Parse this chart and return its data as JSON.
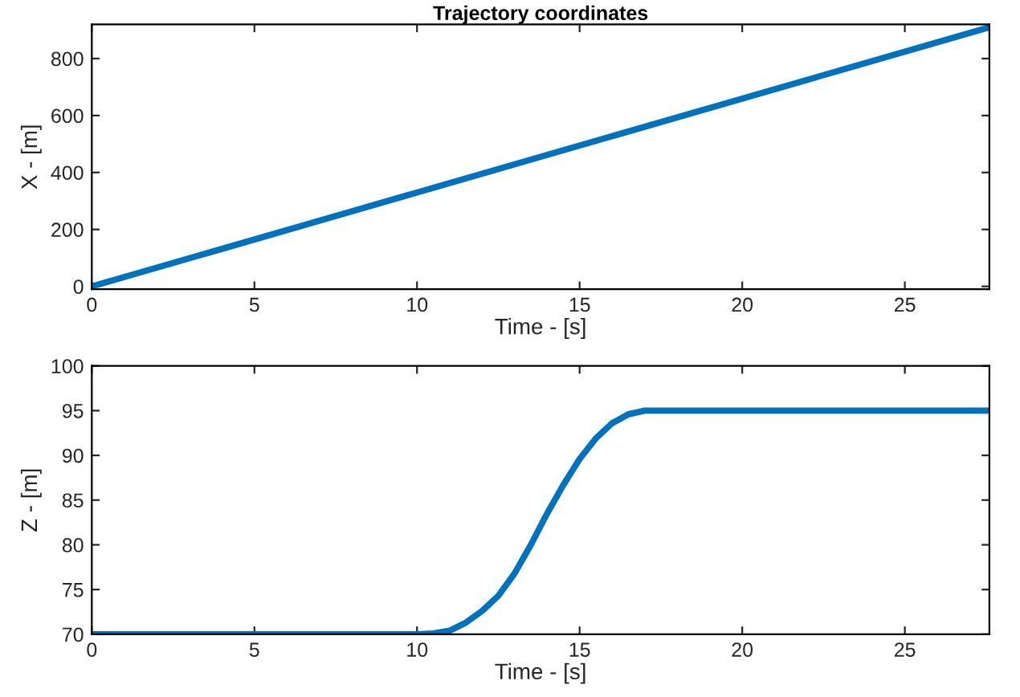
{
  "chart_data": [
    {
      "type": "line",
      "title": "Trajectory coordinates",
      "xlabel": "Time - [s]",
      "ylabel": "X - [m]",
      "x": [
        0,
        27.6
      ],
      "series": [
        {
          "color": "#0072bd",
          "values": [
            0,
            910
          ]
        }
      ],
      "xlim": [
        0,
        27.6
      ],
      "xticks": [
        0,
        5,
        10,
        15,
        20,
        25
      ],
      "ylim": [
        -10,
        920
      ],
      "yticks": [
        0,
        200,
        400,
        600,
        800
      ]
    },
    {
      "type": "line",
      "xlabel": "Time - [s]",
      "ylabel": "Z - [m]",
      "x": [
        0,
        10,
        10.5,
        11,
        11.5,
        12,
        12.5,
        13,
        13.5,
        14,
        14.5,
        15,
        15.5,
        16,
        16.5,
        17,
        17.5,
        27.6
      ],
      "series": [
        {
          "color": "#0072bd",
          "values": [
            70,
            70,
            70.1,
            70.4,
            71.3,
            72.6,
            74.3,
            76.8,
            80,
            83.5,
            86.7,
            89.6,
            91.9,
            93.6,
            94.6,
            95,
            95,
            95
          ]
        }
      ],
      "xlim": [
        0,
        27.6
      ],
      "xticks": [
        0,
        5,
        10,
        15,
        20,
        25
      ],
      "ylim": [
        70,
        100
      ],
      "yticks": [
        70,
        75,
        80,
        85,
        90,
        95,
        100
      ]
    }
  ]
}
